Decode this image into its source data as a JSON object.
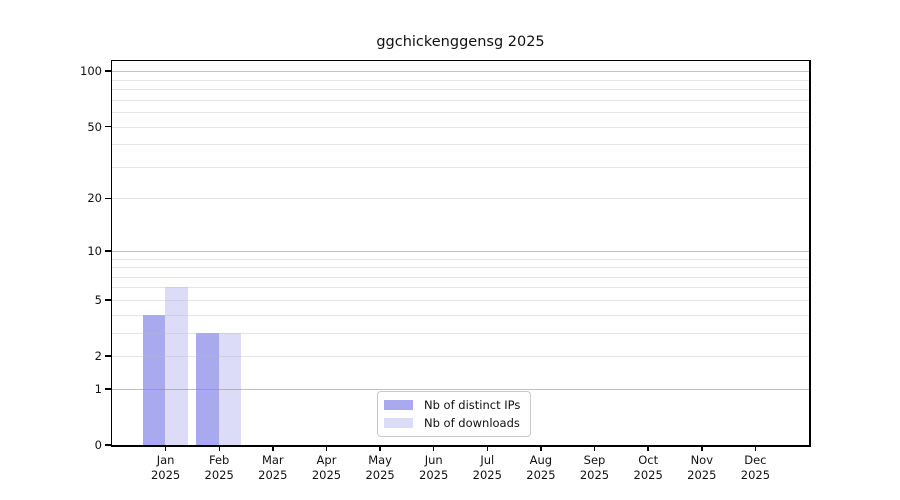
{
  "title": "ggchickenggensg 2025",
  "chart_data": {
    "type": "bar",
    "title": "ggchickenggensg 2025",
    "x": {
      "categories": [
        "Jan",
        "Feb",
        "Mar",
        "Apr",
        "May",
        "Jun",
        "Jul",
        "Aug",
        "Sep",
        "Oct",
        "Nov",
        "Dec"
      ],
      "year_label": "2025"
    },
    "series": [
      {
        "name": "Nb of distinct IPs",
        "color": "#a9a9f0",
        "values": [
          4,
          3,
          0,
          0,
          0,
          0,
          0,
          0,
          0,
          0,
          0,
          0
        ]
      },
      {
        "name": "Nb of downloads",
        "color": "#dcdcf8",
        "values": [
          6,
          3,
          0,
          0,
          0,
          0,
          0,
          0,
          0,
          0,
          0,
          0
        ]
      }
    ],
    "y_axis": {
      "scale": "log1p",
      "ticks": [
        100,
        50,
        20,
        10,
        5,
        2,
        1,
        0
      ],
      "minor_ticks": [
        3,
        4,
        6,
        7,
        8,
        9,
        30,
        40,
        60,
        70,
        80,
        90
      ],
      "emphasized_ticks": [
        1,
        10,
        100
      ],
      "range": [
        0,
        115
      ]
    },
    "grid": {
      "show": true,
      "color_major": "#c6c6c6",
      "color_minor": "#ebebeb"
    },
    "legend": {
      "position": "lower center"
    }
  }
}
